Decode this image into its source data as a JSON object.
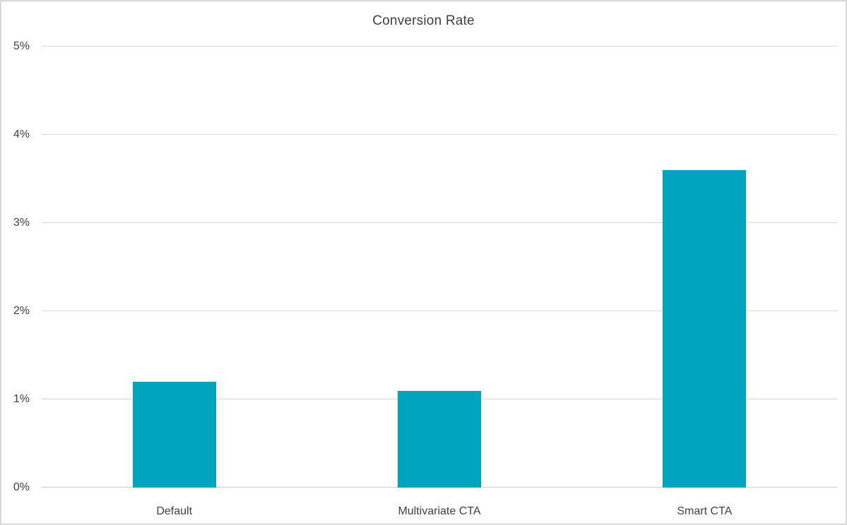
{
  "chart_data": {
    "type": "bar",
    "title": "Conversion Rate",
    "categories": [
      "Default",
      "Multivariate CTA",
      "Smart CTA"
    ],
    "values": [
      1.2,
      1.1,
      3.6
    ],
    "xlabel": "",
    "ylabel": "",
    "ylim": [
      0,
      5
    ],
    "yticks": [
      0,
      1,
      2,
      3,
      4,
      5
    ],
    "ytick_labels": [
      "0%",
      "1%",
      "2%",
      "3%",
      "4%",
      "5%"
    ],
    "grid": true,
    "legend": false,
    "legend_position": "none",
    "bar_color": "#00A4BD"
  },
  "colors": {
    "bar": "#00A4BD",
    "gridline": "#D9D9D9",
    "axis_line": "#CFCFCF",
    "text": "#404040",
    "border": "#D9D9D9",
    "background": "#FFFFFF"
  }
}
